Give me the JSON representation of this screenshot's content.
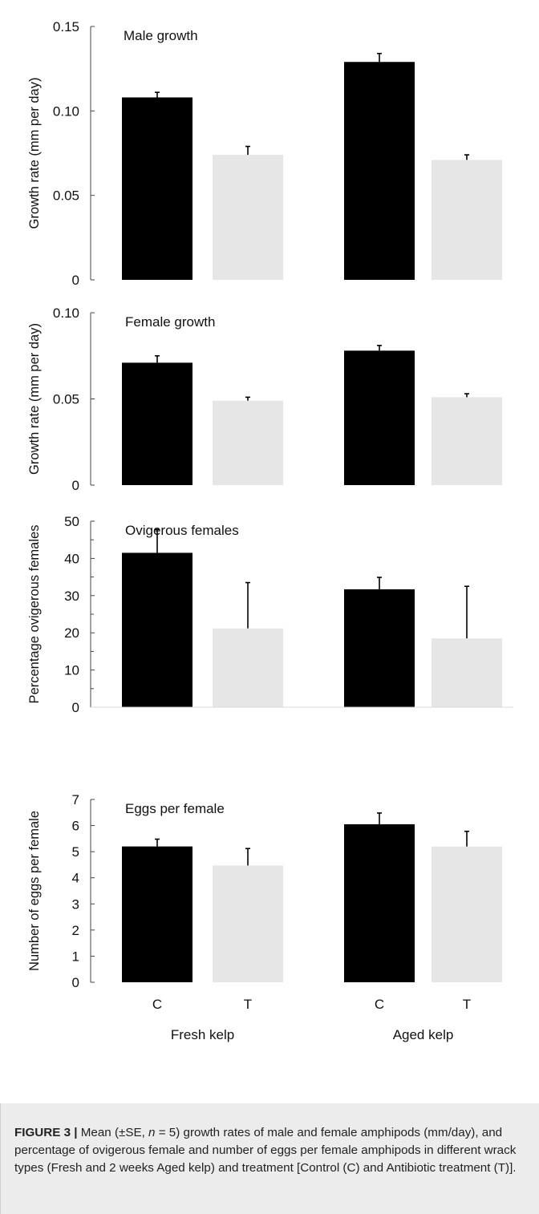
{
  "groups": [
    "Fresh kelp",
    "Aged kelp"
  ],
  "treatments": [
    "C",
    "T"
  ],
  "colors": {
    "control": "#000000",
    "treatment": "#e6e6e6"
  },
  "chart_data": [
    {
      "type": "bar",
      "title": "Male growth",
      "ylabel": "Growth rate (mm per day)",
      "ylim": [
        0,
        0.15
      ],
      "yticks": [
        0,
        0.05,
        0.1,
        0.15
      ],
      "ytick_labels": [
        "0",
        "0.05",
        "0.10",
        "0.15"
      ],
      "minor_ticks": [],
      "categories": [
        "Fresh kelp",
        "Aged kelp"
      ],
      "series": [
        {
          "name": "C",
          "values": [
            0.108,
            0.129
          ],
          "errors": [
            0.003,
            0.005
          ]
        },
        {
          "name": "T",
          "values": [
            0.074,
            0.071
          ],
          "errors": [
            0.005,
            0.003
          ]
        }
      ]
    },
    {
      "type": "bar",
      "title": "Female growth",
      "ylabel": "Growth rate (mm per day)",
      "ylim": [
        0,
        0.1
      ],
      "yticks": [
        0,
        0.05,
        0.1
      ],
      "ytick_labels": [
        "0",
        "0.05",
        "0.10"
      ],
      "minor_ticks": [],
      "categories": [
        "Fresh kelp",
        "Aged kelp"
      ],
      "series": [
        {
          "name": "C",
          "values": [
            0.071,
            0.078
          ],
          "errors": [
            0.004,
            0.003
          ]
        },
        {
          "name": "T",
          "values": [
            0.049,
            0.051
          ],
          "errors": [
            0.002,
            0.002
          ]
        }
      ]
    },
    {
      "type": "bar",
      "title": "Ovigerous females",
      "ylabel": "Percentage ovigerous females",
      "ylim": [
        0,
        50
      ],
      "yticks": [
        0,
        10,
        20,
        30,
        40,
        50
      ],
      "ytick_labels": [
        "0",
        "10",
        "20",
        "30",
        "40",
        "50"
      ],
      "minor_ticks": [
        5,
        15,
        25,
        35,
        45
      ],
      "categories": [
        "Fresh kelp",
        "Aged kelp"
      ],
      "series": [
        {
          "name": "C",
          "values": [
            41.5,
            31.7
          ],
          "errors": [
            6.3,
            3.2
          ]
        },
        {
          "name": "T",
          "values": [
            21.2,
            18.5
          ],
          "errors": [
            12.3,
            14.0
          ]
        }
      ]
    },
    {
      "type": "bar",
      "title": "Eggs per female",
      "ylabel": "Number of eggs per female",
      "ylim": [
        0,
        7
      ],
      "yticks": [
        0,
        1,
        2,
        3,
        4,
        5,
        6,
        7
      ],
      "ytick_labels": [
        "0",
        "1",
        "2",
        "3",
        "4",
        "5",
        "6",
        "7"
      ],
      "minor_ticks": [],
      "categories": [
        "Fresh kelp",
        "Aged kelp"
      ],
      "series": [
        {
          "name": "C",
          "values": [
            5.2,
            6.05
          ],
          "errors": [
            0.28,
            0.43
          ]
        },
        {
          "name": "T",
          "values": [
            4.47,
            5.2
          ],
          "errors": [
            0.65,
            0.58
          ]
        }
      ]
    }
  ],
  "caption": {
    "label": "FIGURE 3 |",
    "text_before": " Mean (±SE, ",
    "n_symbol": "n",
    "text_after": " = 5) growth rates of male and female amphipods (mm/day), and percentage of ovigerous female and number of eggs per female amphipods in different wrack types (Fresh and 2 weeks Aged kelp) and treatment [Control (C) and Antibiotic treatment (T)]."
  }
}
